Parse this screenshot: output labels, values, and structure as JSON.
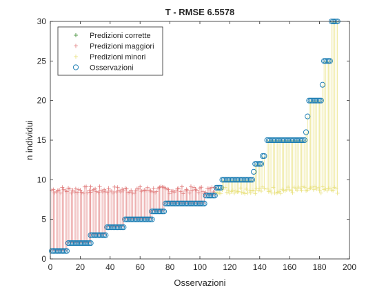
{
  "chart_data": {
    "type": "scatter",
    "title": "T - RMSE 6.5578",
    "xlabel": "Osservazioni",
    "ylabel": "n individui",
    "xlim": [
      0,
      200
    ],
    "ylim": [
      0,
      30
    ],
    "xticks": [
      0,
      20,
      40,
      60,
      80,
      100,
      120,
      140,
      160,
      180,
      200
    ],
    "yticks": [
      0,
      5,
      10,
      15,
      20,
      25,
      30
    ],
    "grid": false,
    "legend_position": "top-left",
    "colors": {
      "correct": "#3a8a2e",
      "over": "#e07a7a",
      "under": "#e8e07a",
      "observed": "#1f7fb4"
    },
    "series": [
      {
        "key": "correct",
        "name": "Predizioni corrette",
        "marker": "plus"
      },
      {
        "key": "over",
        "name": "Predizioni maggiori",
        "marker": "plus"
      },
      {
        "key": "under",
        "name": "Predizioni minori",
        "marker": "plus"
      },
      {
        "key": "observed",
        "name": "Osservazioni",
        "marker": "circle"
      }
    ],
    "observed_steps": [
      {
        "from": 1,
        "to": 11,
        "value": 1
      },
      {
        "from": 12,
        "to": 27,
        "value": 2
      },
      {
        "from": 27,
        "to": 37,
        "value": 3
      },
      {
        "from": 38,
        "to": 49,
        "value": 4
      },
      {
        "from": 50,
        "to": 68,
        "value": 5
      },
      {
        "from": 68,
        "to": 76,
        "value": 6
      },
      {
        "from": 77,
        "to": 103,
        "value": 7
      },
      {
        "from": 104,
        "to": 110,
        "value": 8
      },
      {
        "from": 111,
        "to": 114,
        "value": 9
      },
      {
        "from": 115,
        "to": 135,
        "value": 10
      },
      {
        "from": 136,
        "to": 136,
        "value": 11
      },
      {
        "from": 137,
        "to": 141,
        "value": 12
      },
      {
        "from": 142,
        "to": 143,
        "value": 13
      },
      {
        "from": 145,
        "to": 170,
        "value": 15
      },
      {
        "from": 171,
        "to": 171,
        "value": 16
      },
      {
        "from": 172,
        "to": 172,
        "value": 18
      },
      {
        "from": 173,
        "to": 181,
        "value": 20
      },
      {
        "from": 182,
        "to": 182,
        "value": 22
      },
      {
        "from": 183,
        "to": 187,
        "value": 25
      },
      {
        "from": 188,
        "to": 192,
        "value": 30
      }
    ],
    "prediction_mean": 8.7,
    "prediction_spread": 0.45
  }
}
